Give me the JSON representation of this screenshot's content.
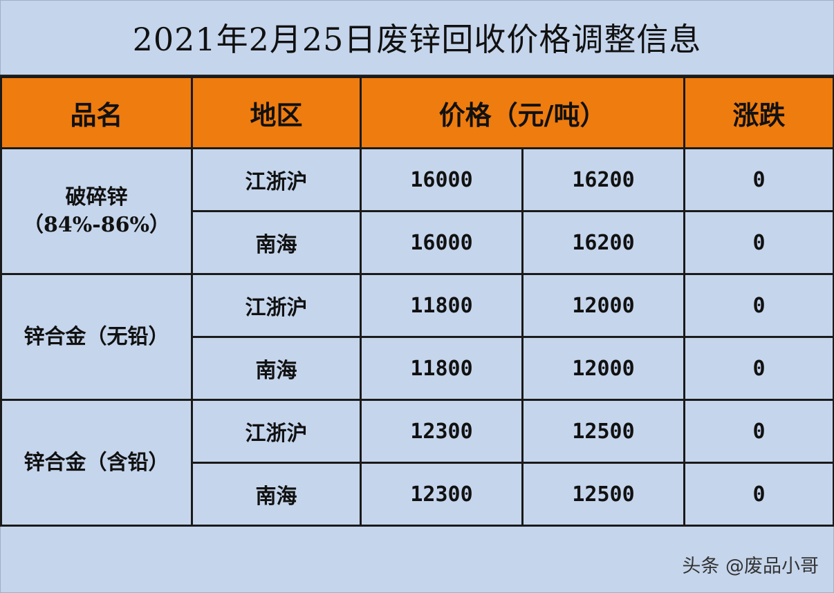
{
  "title": "2021年2月25日废锌回收价格调整信息",
  "headers": {
    "product": "品名",
    "region": "地区",
    "price": "价格（元/吨）",
    "change": "涨跌"
  },
  "groups": [
    {
      "name": "破碎锌",
      "sub": "（84%-86%）",
      "rows": [
        {
          "region": "江浙沪",
          "low": "16000",
          "high": "16200",
          "change": "0"
        },
        {
          "region": "南海",
          "low": "16000",
          "high": "16200",
          "change": "0"
        }
      ]
    },
    {
      "name": "锌合金（无铅）",
      "sub": "",
      "rows": [
        {
          "region": "江浙沪",
          "low": "11800",
          "high": "12000",
          "change": "0"
        },
        {
          "region": "南海",
          "low": "11800",
          "high": "12000",
          "change": "0"
        }
      ]
    },
    {
      "name": "锌合金（含铅）",
      "sub": "",
      "rows": [
        {
          "region": "江浙沪",
          "low": "12300",
          "high": "12500",
          "change": "0"
        },
        {
          "region": "南海",
          "low": "12300",
          "high": "12500",
          "change": "0"
        }
      ]
    }
  ],
  "watermark": "头条 @废品小哥"
}
